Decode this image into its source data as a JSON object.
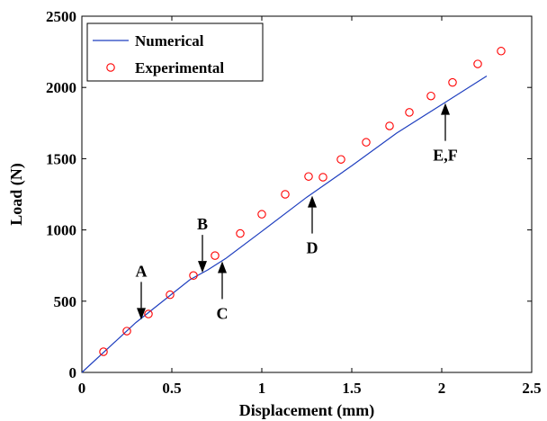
{
  "chart_data": {
    "type": "line",
    "xlabel": "Displacement (mm)",
    "ylabel": "Load (N)",
    "xlim": [
      0,
      2.5
    ],
    "ylim": [
      0,
      2500
    ],
    "xticks": [
      0,
      0.5,
      1,
      1.5,
      2,
      2.5
    ],
    "xtick_labels": [
      "0",
      "0.5",
      "1",
      "1.5",
      "2",
      "2.5"
    ],
    "yticks": [
      0,
      500,
      1000,
      1500,
      2000,
      2500
    ],
    "ytick_labels": [
      "0",
      "500",
      "1000",
      "1500",
      "2000",
      "2500"
    ],
    "grid": false,
    "legend_position": "top-left",
    "series": [
      {
        "name": "Numerical",
        "style": "line",
        "color": "#1f3fbf",
        "x": [
          0,
          0.3,
          0.6,
          0.7,
          0.8,
          1.0,
          1.25,
          1.5,
          1.75,
          2.0,
          2.25
        ],
        "y": [
          0,
          350,
          650,
          720,
          800,
          990,
          1230,
          1450,
          1680,
          1880,
          2080
        ]
      },
      {
        "name": "Experimental",
        "style": "marker",
        "color": "#ff0000",
        "x": [
          0.12,
          0.25,
          0.37,
          0.49,
          0.62,
          0.74,
          0.88,
          1.0,
          1.13,
          1.26,
          1.34,
          1.44,
          1.58,
          1.71,
          1.82,
          1.94,
          2.06,
          2.2,
          2.33
        ],
        "y": [
          145,
          290,
          410,
          545,
          680,
          820,
          975,
          1110,
          1250,
          1375,
          1370,
          1495,
          1615,
          1730,
          1825,
          1940,
          2035,
          2165,
          2255
        ]
      }
    ],
    "annotations": [
      {
        "label": "A",
        "x": 0.33,
        "y": 370,
        "direction": "down"
      },
      {
        "label": "B",
        "x": 0.67,
        "y": 700,
        "direction": "down"
      },
      {
        "label": "C",
        "x": 0.78,
        "y": 780,
        "direction": "up"
      },
      {
        "label": "D",
        "x": 1.28,
        "y": 1240,
        "direction": "up"
      },
      {
        "label": "E,F",
        "x": 2.02,
        "y": 1890,
        "direction": "up"
      }
    ]
  }
}
